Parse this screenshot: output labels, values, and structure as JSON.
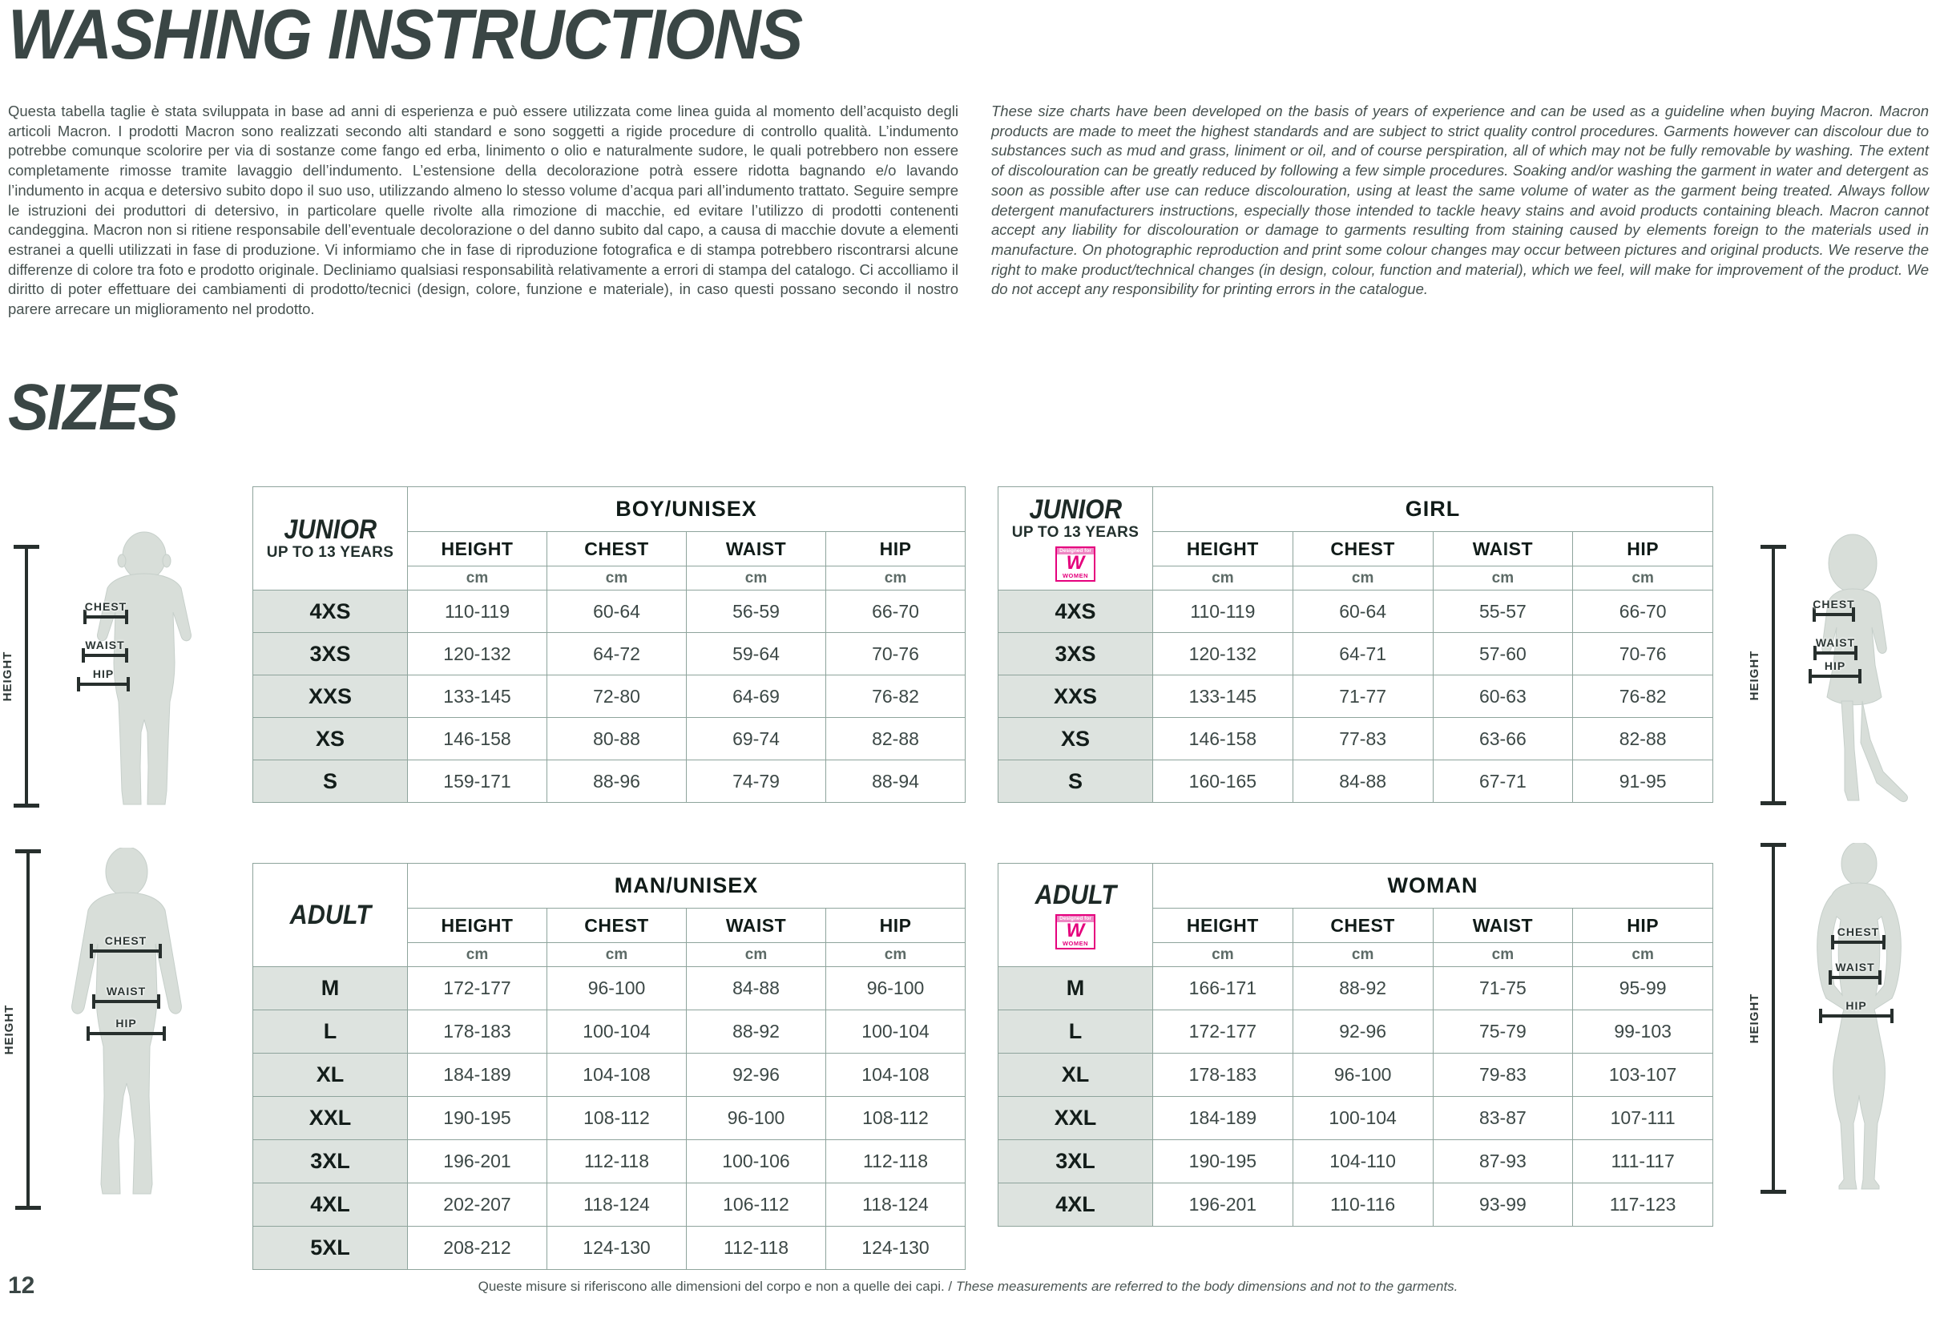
{
  "page": {
    "title": "WASHING INSTRUCTIONS",
    "sizes_heading": "SIZES",
    "page_number": "12",
    "footer_note_it": "Queste misure si riferiscono alle dimensioni del corpo e non a quelle dei capi. /",
    "footer_note_en": " These measurements are referred to the body dimensions and not to the garments."
  },
  "intro": {
    "italian": "Questa tabella taglie è stata sviluppata in base ad anni di esperienza e può essere utilizzata come linea guida al momento dell’acquisto degli articoli Macron. I prodotti Macron sono realizzati secondo alti standard e sono soggetti a rigide procedure di controllo qualità. L’indumento potrebbe comunque scolorire per via di sostanze come fango ed erba, linimento o olio e naturalmente sudore, le quali potrebbero non essere completamente rimosse tramite lavaggio dell’indumento. L’estensione della decolorazione potrà essere ridotta bagnando e/o lavando l’indumento in acqua e detersivo subito dopo il suo uso, utilizzando almeno lo stesso volume d’acqua pari all’indumento trattato. Seguire sempre le istruzioni dei produttori di detersivo, in particolare quelle rivolte alla rimozione di macchie, ed evitare l’utilizzo di prodotti contenenti candeggina. Macron non si ritiene responsabile dell’eventuale decolorazione o del danno subito dal capo, a causa di macchie dovute a elementi estranei a quelli utilizzati in fase di produzione. Vi informiamo che in fase di riproduzione fotografica e di stampa potrebbero riscontrarsi alcune differenze di colore tra foto e prodotto originale. Decliniamo qualsiasi responsabilità relativamente a errori di stampa del catalogo. Ci accolliamo il diritto di poter effettuare dei cambiamenti di prodotto/tecnici (design, colore, funzione e materiale), in caso questi possano secondo il nostro parere arrecare un miglioramento nel prodotto.",
    "english": "These size charts have been developed on the basis of years of experience and can be used as a guideline when buying Macron. Macron products are made to meet the highest standards and are subject to strict quality control procedures. Garments however can discolour due to substances such as mud and grass, liniment or oil, and of course perspiration, all of which may not be fully removable by washing. The extent of discolouration can be greatly reduced by following a few simple procedures. Soaking and/or washing the garment in water and detergent as soon as possible after use can reduce discolouration, using at least the same volume of water as the garment being treated. Always follow detergent manufacturers instructions, especially those intended to tackle heavy stains and avoid products containing bleach. Macron cannot accept any liability for discolouration or damage to garments resulting from staining caused by elements foreign to the materials used in manufacture. On photographic reproduction and print some colour changes may occur between pictures and original products. We reserve the right to make product/technical changes (in design, colour, function and material), which we feel, will make for improvement of the product. We do not accept any responsibility for printing errors in the catalogue."
  },
  "badge": {
    "top": "Designed for",
    "letter": "W",
    "bottom": "WOMEN",
    "color": "#e5007d"
  },
  "figures": {
    "height_label": "HEIGHT",
    "chest_label": "CHEST",
    "waist_label": "WAIST",
    "hip_label": "HIP"
  },
  "tables": {
    "junior_boy": {
      "group_label": "JUNIOR",
      "group_sub": "UP TO 13 YEARS",
      "title": "BOY/UNISEX",
      "columns": [
        "HEIGHT",
        "CHEST",
        "WAIST",
        "HIP"
      ],
      "unit": "cm",
      "rows": [
        {
          "size": "4XS",
          "values": [
            "110-119",
            "60-64",
            "56-59",
            "66-70"
          ]
        },
        {
          "size": "3XS",
          "values": [
            "120-132",
            "64-72",
            "59-64",
            "70-76"
          ]
        },
        {
          "size": "XXS",
          "values": [
            "133-145",
            "72-80",
            "64-69",
            "76-82"
          ]
        },
        {
          "size": "XS",
          "values": [
            "146-158",
            "80-88",
            "69-74",
            "82-88"
          ]
        },
        {
          "size": "S",
          "values": [
            "159-171",
            "88-96",
            "74-79",
            "88-94"
          ]
        }
      ]
    },
    "junior_girl": {
      "group_label": "JUNIOR",
      "group_sub": "UP TO 13 YEARS",
      "title": "GIRL",
      "columns": [
        "HEIGHT",
        "CHEST",
        "WAIST",
        "HIP"
      ],
      "unit": "cm",
      "rows": [
        {
          "size": "4XS",
          "values": [
            "110-119",
            "60-64",
            "55-57",
            "66-70"
          ]
        },
        {
          "size": "3XS",
          "values": [
            "120-132",
            "64-71",
            "57-60",
            "70-76"
          ]
        },
        {
          "size": "XXS",
          "values": [
            "133-145",
            "71-77",
            "60-63",
            "76-82"
          ]
        },
        {
          "size": "XS",
          "values": [
            "146-158",
            "77-83",
            "63-66",
            "82-88"
          ]
        },
        {
          "size": "S",
          "values": [
            "160-165",
            "84-88",
            "67-71",
            "91-95"
          ]
        }
      ]
    },
    "adult_man": {
      "group_label": "ADULT",
      "group_sub": "",
      "title": "MAN/UNISEX",
      "columns": [
        "HEIGHT",
        "CHEST",
        "WAIST",
        "HIP"
      ],
      "unit": "cm",
      "rows": [
        {
          "size": "M",
          "values": [
            "172-177",
            "96-100",
            "84-88",
            "96-100"
          ]
        },
        {
          "size": "L",
          "values": [
            "178-183",
            "100-104",
            "88-92",
            "100-104"
          ]
        },
        {
          "size": "XL",
          "values": [
            "184-189",
            "104-108",
            "92-96",
            "104-108"
          ]
        },
        {
          "size": "XXL",
          "values": [
            "190-195",
            "108-112",
            "96-100",
            "108-112"
          ]
        },
        {
          "size": "3XL",
          "values": [
            "196-201",
            "112-118",
            "100-106",
            "112-118"
          ]
        },
        {
          "size": "4XL",
          "values": [
            "202-207",
            "118-124",
            "106-112",
            "118-124"
          ]
        },
        {
          "size": "5XL",
          "values": [
            "208-212",
            "124-130",
            "112-118",
            "124-130"
          ]
        }
      ]
    },
    "adult_woman": {
      "group_label": "ADULT",
      "group_sub": "",
      "title": "WOMAN",
      "columns": [
        "HEIGHT",
        "CHEST",
        "WAIST",
        "HIP"
      ],
      "unit": "cm",
      "rows": [
        {
          "size": "M",
          "values": [
            "166-171",
            "88-92",
            "71-75",
            "95-99"
          ]
        },
        {
          "size": "L",
          "values": [
            "172-177",
            "92-96",
            "75-79",
            "99-103"
          ]
        },
        {
          "size": "XL",
          "values": [
            "178-183",
            "96-100",
            "79-83",
            "103-107"
          ]
        },
        {
          "size": "XXL",
          "values": [
            "184-189",
            "100-104",
            "83-87",
            "107-111"
          ]
        },
        {
          "size": "3XL",
          "values": [
            "190-195",
            "104-110",
            "87-93",
            "111-117"
          ]
        },
        {
          "size": "4XL",
          "values": [
            "196-201",
            "110-116",
            "93-99",
            "117-123"
          ]
        }
      ]
    }
  }
}
